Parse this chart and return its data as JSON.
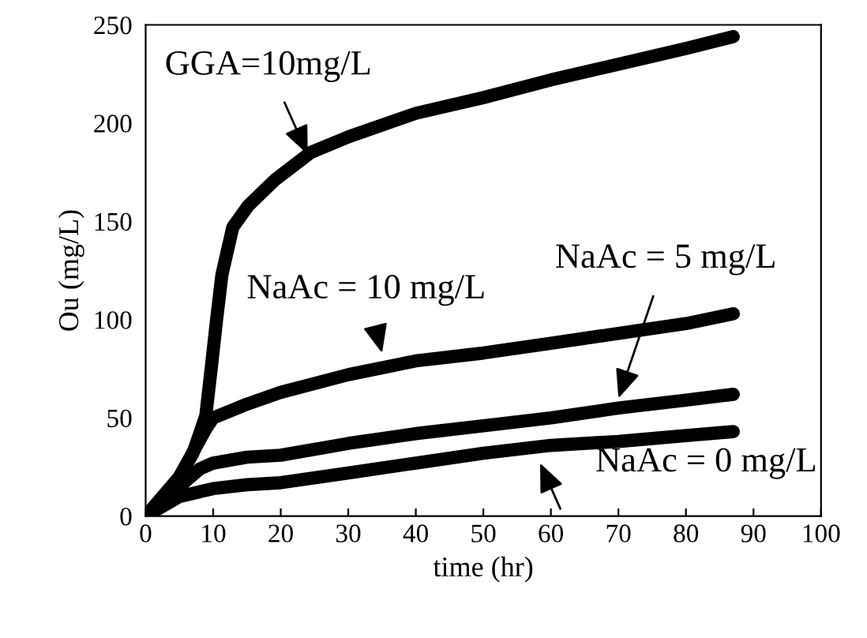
{
  "chart_data": {
    "type": "line",
    "xlabel": "time (hr)",
    "ylabel": "Ou (mg/L)",
    "xlim": [
      0,
      100
    ],
    "ylim": [
      0,
      250
    ],
    "xticks": [
      0,
      10,
      20,
      30,
      40,
      50,
      60,
      70,
      80,
      90,
      100
    ],
    "yticks": [
      0,
      50,
      100,
      150,
      200,
      250
    ],
    "grid": false,
    "legend": false,
    "marker": "none",
    "line_style": "solid",
    "series": [
      {
        "color": "#000000",
        "x": [
          0,
          3,
          5,
          7,
          8,
          8.9,
          9.7,
          10.5,
          11.3,
          12.9,
          15.2,
          19.1,
          24.4,
          30,
          40,
          50,
          60,
          70,
          80,
          87
        ],
        "values": [
          0,
          10,
          20,
          32,
          42,
          51,
          75,
          100,
          123,
          147,
          158,
          171,
          185,
          193,
          205,
          213,
          222,
          230,
          238,
          244
        ]
      },
      {
        "color": "#000000",
        "x": [
          0,
          5,
          9,
          10,
          15,
          20,
          30,
          40,
          50,
          60,
          70,
          80,
          87
        ],
        "values": [
          0,
          20,
          45,
          50,
          57,
          63,
          72,
          79,
          83,
          88,
          93,
          98,
          103
        ]
      },
      {
        "color": "#000000",
        "x": [
          0,
          5,
          8,
          10,
          15,
          20,
          30,
          40,
          50,
          60,
          70,
          80,
          87
        ],
        "values": [
          0,
          15,
          24,
          27,
          30,
          31,
          37,
          42,
          46,
          50,
          55,
          59,
          62
        ]
      },
      {
        "color": "#000000",
        "x": [
          0,
          5,
          10,
          15,
          20,
          30,
          40,
          50,
          60,
          70,
          80,
          87
        ],
        "values": [
          0,
          10,
          14,
          16,
          17,
          22,
          27,
          32,
          36,
          38,
          41,
          43
        ]
      }
    ],
    "annotations": [
      {
        "text": "GGA=10mg/L",
        "x": 24,
        "y": 184
      },
      {
        "text": "NaAc = 10 mg/L",
        "x": 35,
        "y": 83
      },
      {
        "text": "NaAc = 5 mg/L",
        "x": 70,
        "y": 60
      },
      "NaAc = 0 mg/L"
    ]
  }
}
